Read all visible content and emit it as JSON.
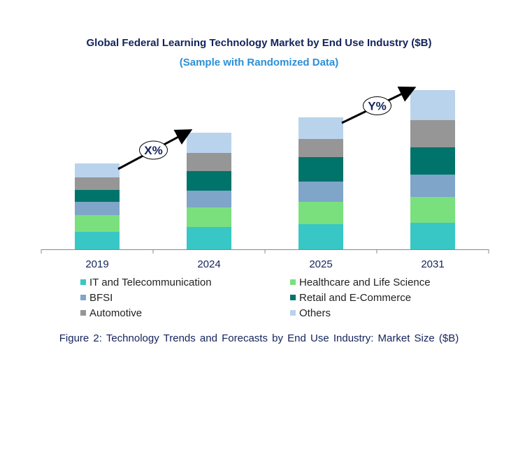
{
  "chart_data": {
    "type": "bar",
    "stacked": true,
    "title": "Global Federal Learning Technology Market by End Use Industry ($B)",
    "subtitle": "(Sample with Randomized Data)",
    "xlabel": "",
    "ylabel": "",
    "categories": [
      "2019",
      "2024",
      "2025",
      "2031"
    ],
    "ylim": [
      0,
      240
    ],
    "grid": false,
    "legend_position": "bottom",
    "series": [
      {
        "name": "IT and Telecommunication",
        "color": "#38c7c4",
        "values": [
          25,
          32,
          36,
          38
        ]
      },
      {
        "name": "Healthcare and Life Science",
        "color": "#7ae07e",
        "values": [
          24,
          28,
          32,
          37
        ]
      },
      {
        "name": "BFSI",
        "color": "#7fa5c9",
        "values": [
          19,
          24,
          29,
          32
        ]
      },
      {
        "name": "Retail and E-Commerce",
        "color": "#00736a",
        "values": [
          17,
          28,
          35,
          39
        ]
      },
      {
        "name": "Automotive",
        "color": "#969696",
        "values": [
          18,
          26,
          26,
          39
        ]
      },
      {
        "name": "Others",
        "color": "#b9d3ec",
        "values": [
          20,
          29,
          31,
          43
        ]
      }
    ],
    "annotations": [
      {
        "text": "X%",
        "from": "2019",
        "to": "2024"
      },
      {
        "text": "Y%",
        "from": "2025",
        "to": "2031"
      }
    ],
    "caption": "Figure 2: Technology Trends and Forecasts by End Use Industry:  Market Size ($B)"
  }
}
